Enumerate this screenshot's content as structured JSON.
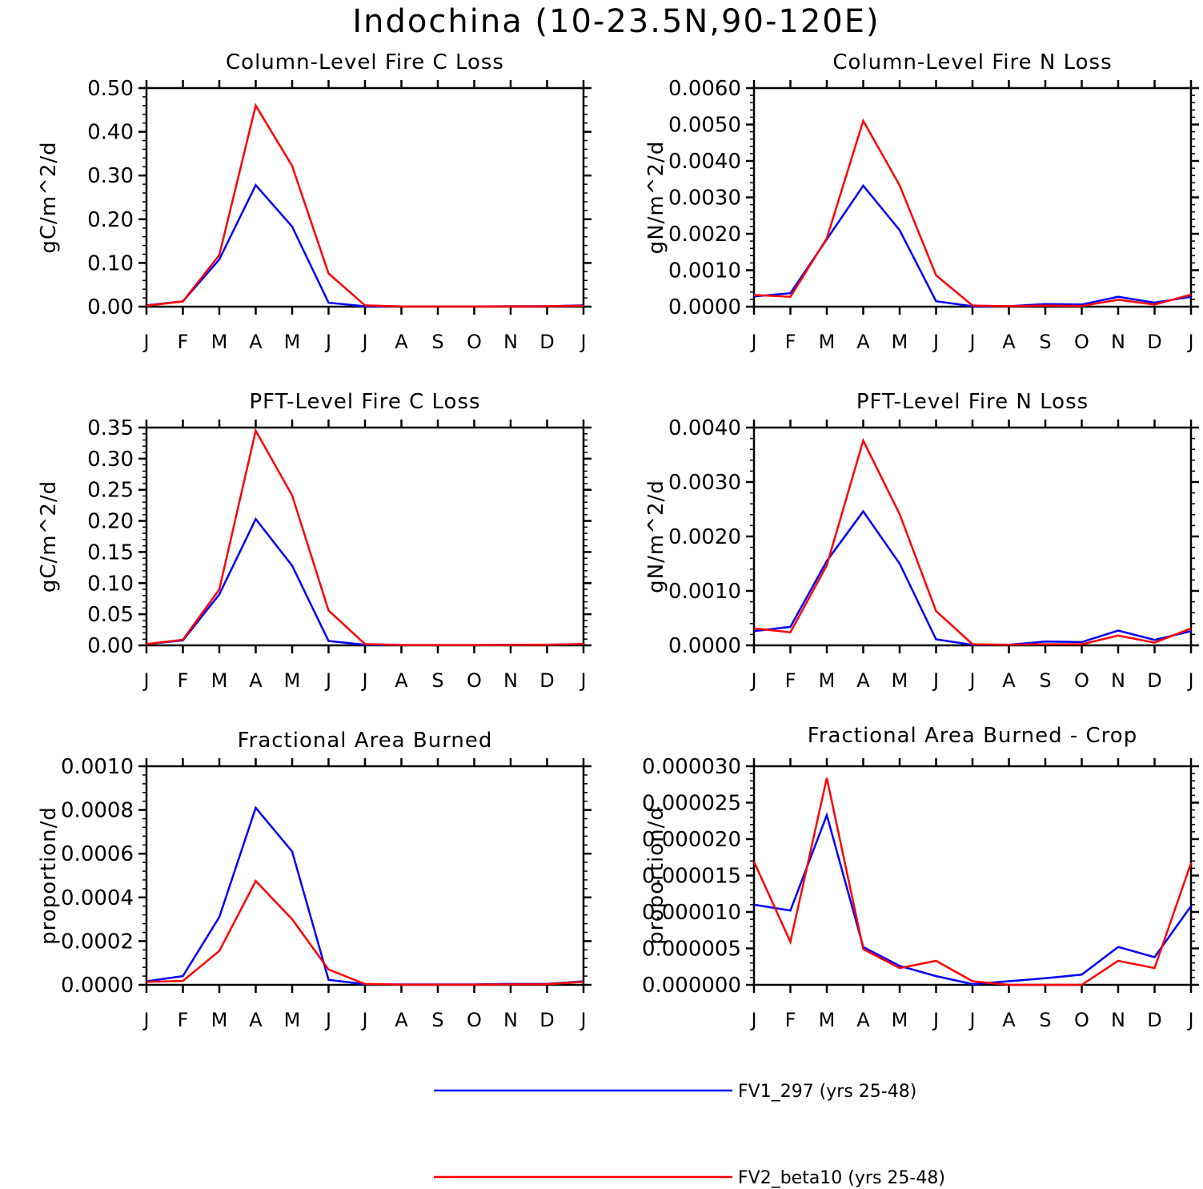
{
  "figure_title": "Indochina (10-23.5N,90-120E)",
  "colors": {
    "series1": "#0000ff",
    "series2": "#ff0000",
    "axis": "#000000",
    "background": "#ffffff"
  },
  "legend": [
    {
      "label": "FV1_297 (yrs 25-48)",
      "color": "#0000ff"
    },
    {
      "label": "FV2_beta10 (yrs 25-48)",
      "color": "#ff0000"
    }
  ],
  "chart_data": [
    {
      "type": "line",
      "title": "Column-Level Fire C Loss",
      "xlabel": "",
      "ylabel": "gC/m^2/d",
      "categories": [
        "J",
        "F",
        "M",
        "A",
        "M",
        "J",
        "J",
        "A",
        "S",
        "O",
        "N",
        "D",
        "J"
      ],
      "ylim": [
        0,
        0.5
      ],
      "yticks": [
        "0.00",
        "0.10",
        "0.20",
        "0.30",
        "0.40",
        "0.50"
      ],
      "yticks_values": [
        0,
        0.1,
        0.2,
        0.3,
        0.4,
        0.5
      ],
      "series": [
        {
          "name": "FV1_297 (yrs 25-48)",
          "values": [
            0.003,
            0.012,
            0.108,
            0.278,
            0.183,
            0.009,
            0.001,
            0.0005,
            0.0005,
            0.0005,
            0.001,
            0.001,
            0.003
          ]
        },
        {
          "name": "FV2_beta10 (yrs 25-48)",
          "values": [
            0.002,
            0.012,
            0.118,
            0.46,
            0.322,
            0.076,
            0.003,
            0.0005,
            0.0005,
            0.0005,
            0.0005,
            0.001,
            0.002
          ]
        }
      ]
    },
    {
      "type": "line",
      "title": "Column-Level Fire N Loss",
      "xlabel": "",
      "ylabel": "gN/m^2/d",
      "categories": [
        "J",
        "F",
        "M",
        "A",
        "M",
        "J",
        "J",
        "A",
        "S",
        "O",
        "N",
        "D",
        "J"
      ],
      "ylim": [
        0,
        0.006
      ],
      "yticks": [
        "0.0000",
        "0.0010",
        "0.0020",
        "0.0030",
        "0.0040",
        "0.0050",
        "0.0060"
      ],
      "yticks_values": [
        0,
        0.001,
        0.002,
        0.003,
        0.004,
        0.005,
        0.006
      ],
      "series": [
        {
          "name": "FV1_297 (yrs 25-48)",
          "values": [
            0.00028,
            0.00037,
            0.00185,
            0.00332,
            0.0021,
            0.00015,
            1e-05,
            1e-05,
            7e-05,
            6e-05,
            0.00027,
            0.00011,
            0.00027
          ]
        },
        {
          "name": "FV2_beta10 (yrs 25-48)",
          "values": [
            0.00032,
            0.00027,
            0.00188,
            0.0051,
            0.00333,
            0.00086,
            3e-05,
            1e-05,
            3e-05,
            2e-05,
            0.00019,
            6e-05,
            0.00033
          ]
        }
      ]
    },
    {
      "type": "line",
      "title": "PFT-Level Fire C Loss",
      "xlabel": "",
      "ylabel": "gC/m^2/d",
      "categories": [
        "J",
        "F",
        "M",
        "A",
        "M",
        "J",
        "J",
        "A",
        "S",
        "O",
        "N",
        "D",
        "J"
      ],
      "ylim": [
        0,
        0.35
      ],
      "yticks": [
        "0.00",
        "0.05",
        "0.10",
        "0.15",
        "0.20",
        "0.25",
        "0.30",
        "0.35"
      ],
      "yticks_values": [
        0,
        0.05,
        0.1,
        0.15,
        0.2,
        0.25,
        0.3,
        0.35
      ],
      "series": [
        {
          "name": "FV1_297 (yrs 25-48)",
          "values": [
            0.002,
            0.008,
            0.082,
            0.203,
            0.128,
            0.007,
            0.001,
            0.0005,
            0.0005,
            0.0005,
            0.001,
            0.001,
            0.002
          ]
        },
        {
          "name": "FV2_beta10 (yrs 25-48)",
          "values": [
            0.002,
            0.009,
            0.09,
            0.345,
            0.241,
            0.056,
            0.002,
            0.0005,
            0.0005,
            0.0005,
            0.0005,
            0.001,
            0.002
          ]
        }
      ]
    },
    {
      "type": "line",
      "title": "PFT-Level Fire N Loss",
      "xlabel": "",
      "ylabel": "gN/m^2/d",
      "categories": [
        "J",
        "F",
        "M",
        "A",
        "M",
        "J",
        "J",
        "A",
        "S",
        "O",
        "N",
        "D",
        "J"
      ],
      "ylim": [
        0,
        0.004
      ],
      "yticks": [
        "0.0000",
        "0.0010",
        "0.0020",
        "0.0030",
        "0.0040"
      ],
      "yticks_values": [
        0,
        0.001,
        0.002,
        0.003,
        0.004
      ],
      "series": [
        {
          "name": "FV1_297 (yrs 25-48)",
          "values": [
            0.00026,
            0.00034,
            0.00155,
            0.00246,
            0.0015,
            0.00011,
            1e-05,
            1e-05,
            7e-05,
            6e-05,
            0.00027,
            0.0001,
            0.00026
          ]
        },
        {
          "name": "FV2_beta10 (yrs 25-48)",
          "values": [
            0.00031,
            0.00024,
            0.00147,
            0.00376,
            0.00241,
            0.00063,
            2e-05,
            1e-05,
            2e-05,
            2e-05,
            0.00018,
            5e-05,
            0.00031
          ]
        }
      ]
    },
    {
      "type": "line",
      "title": "Fractional Area Burned",
      "xlabel": "",
      "ylabel": "proportion/d",
      "categories": [
        "J",
        "F",
        "M",
        "A",
        "M",
        "J",
        "J",
        "A",
        "S",
        "O",
        "N",
        "D",
        "J"
      ],
      "ylim": [
        0,
        0.001
      ],
      "yticks": [
        "0.0000",
        "0.0002",
        "0.0004",
        "0.0006",
        "0.0008",
        "0.0010"
      ],
      "yticks_values": [
        0,
        0.0002,
        0.0004,
        0.0006,
        0.0008,
        0.001
      ],
      "series": [
        {
          "name": "FV1_297 (yrs 25-48)",
          "values": [
            1.6e-05,
            4e-05,
            0.00031,
            0.00081,
            0.00061,
            2.3e-05,
            3e-06,
            2e-06,
            2e-06,
            2e-06,
            4e-06,
            4e-06,
            1.6e-05
          ]
        },
        {
          "name": "FV2_beta10 (yrs 25-48)",
          "values": [
            1.4e-05,
            1.8e-05,
            0.000155,
            0.000475,
            0.0003,
            7e-05,
            4e-06,
            1e-06,
            1e-06,
            1e-06,
            2e-06,
            3e-06,
            1.4e-05
          ]
        }
      ]
    },
    {
      "type": "line",
      "title": "Fractional Area Burned - Crop",
      "xlabel": "",
      "ylabel": "proportion/d",
      "categories": [
        "J",
        "F",
        "M",
        "A",
        "M",
        "J",
        "J",
        "A",
        "S",
        "O",
        "N",
        "D",
        "J"
      ],
      "ylim": [
        0,
        3e-05
      ],
      "yticks": [
        "0.000000",
        "0.000005",
        "0.000010",
        "0.000015",
        "0.000020",
        "0.000025",
        "0.000030"
      ],
      "yticks_values": [
        0,
        5e-06,
        1e-05,
        1.5e-05,
        2e-05,
        2.5e-05,
        3e-05
      ],
      "series": [
        {
          "name": "FV1_297 (yrs 25-48)",
          "values": [
            1.1e-05,
            1.02e-05,
            2.33e-05,
            5.2e-06,
            2.6e-06,
            1.2e-06,
            1e-07,
            5e-07,
            9e-07,
            1.4e-06,
            5.2e-06,
            3.8e-06,
            1.08e-05
          ]
        },
        {
          "name": "FV2_beta10 (yrs 25-48)",
          "values": [
            1.69e-05,
            5.9e-06,
            2.84e-05,
            4.9e-06,
            2.3e-06,
            3.3e-06,
            5e-07,
            0.0,
            0.0,
            0.0,
            3.3e-06,
            2.3e-06,
            1.67e-05
          ]
        }
      ]
    }
  ]
}
